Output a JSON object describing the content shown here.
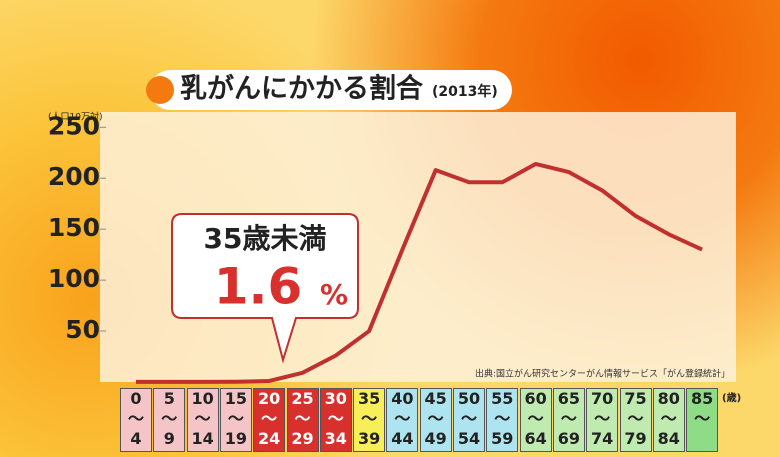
{
  "chart_data": {
    "type": "line",
    "title": "乳がんにかかる割合",
    "subtitle": "(2013年)",
    "y_label": "(人口10万対)",
    "x_label": "(歳)",
    "source": "出典:国立がん研究センターがん情報サービス「がん登録統計」",
    "annotation": {
      "title": "35歳未満",
      "value": "1.6",
      "unit": "%"
    },
    "categories": [
      "0\n〜\n4",
      "5\n〜\n9",
      "10\n〜\n14",
      "15\n〜\n19",
      "20\n〜\n24",
      "25\n〜\n29",
      "30\n〜\n34",
      "35\n〜\n39",
      "40\n〜\n44",
      "45\n〜\n49",
      "50\n〜\n54",
      "55\n〜\n59",
      "60\n〜\n64",
      "65\n〜\n69",
      "70\n〜\n74",
      "75\n〜\n79",
      "80\n〜\n84",
      "85\n〜"
    ],
    "category_colors": [
      "#f5c4c6",
      "#f5c4c6",
      "#f5c4c6",
      "#f5c4c6",
      "#d8302c",
      "#d8302c",
      "#d8302c",
      "#f7ef5a",
      "#aee3f0",
      "#aee3f0",
      "#aee3f0",
      "#aee3f0",
      "#bfeab0",
      "#bfeab0",
      "#bfeab0",
      "#bfeab0",
      "#bfeab0",
      "#8fdc86"
    ],
    "series": [
      {
        "name": "乳がん",
        "color": "#c0302e",
        "values": [
          0.1,
          0.1,
          0.1,
          0.2,
          1,
          9,
          26,
          50,
          130,
          208,
          196,
          196,
          214,
          206,
          188,
          163,
          145,
          130
        ]
      }
    ],
    "ylim": [
      0,
      265
    ],
    "yticks": [
      50,
      100,
      150,
      200,
      250
    ],
    "grid": false
  }
}
